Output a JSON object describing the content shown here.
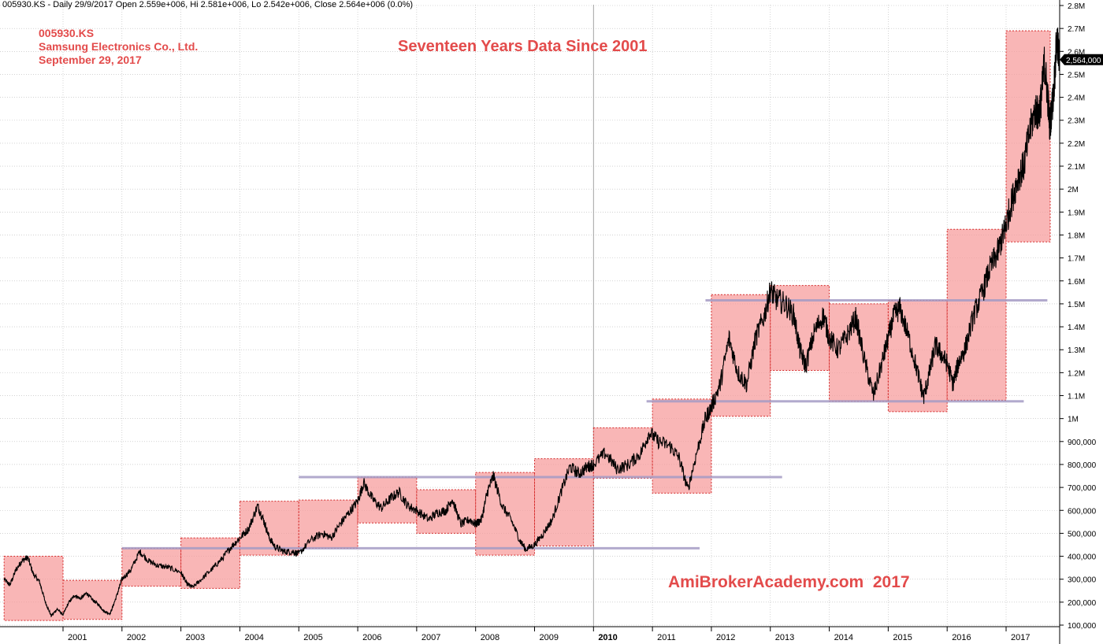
{
  "header": {
    "status_line": "005930.KS - Daily 29/9/2017 Open 2.559e+006, Hi 2.581e+006, Lo 2.542e+006, Close 2.564e+006 (0.0%)"
  },
  "info": {
    "ticker": "005930.KS",
    "company": "Samsung Electronics Co., Ltd.",
    "date": "September 29, 2017"
  },
  "chart_data": {
    "type": "line",
    "title": "Seventeen Years Data Since 2001",
    "watermark": "AmiBrokerAcademy.com  2017",
    "xlabel": "",
    "ylabel": "",
    "grid": true,
    "axis_position": "right",
    "last_value_label": "2,564,000",
    "ylim": [
      80000,
      2800000
    ],
    "y_ticks": [
      {
        "value": 100000,
        "label": "100,000"
      },
      {
        "value": 200000,
        "label": "200,000"
      },
      {
        "value": 300000,
        "label": "300,000"
      },
      {
        "value": 400000,
        "label": "400,000"
      },
      {
        "value": 500000,
        "label": "500,000"
      },
      {
        "value": 600000,
        "label": "600,000"
      },
      {
        "value": 700000,
        "label": "700,000"
      },
      {
        "value": 800000,
        "label": "800,000"
      },
      {
        "value": 900000,
        "label": "900,000"
      },
      {
        "value": 1000000,
        "label": "1M"
      },
      {
        "value": 1100000,
        "label": "1.1M"
      },
      {
        "value": 1200000,
        "label": "1.2M"
      },
      {
        "value": 1300000,
        "label": "1.3M"
      },
      {
        "value": 1400000,
        "label": "1.4M"
      },
      {
        "value": 1500000,
        "label": "1.5M"
      },
      {
        "value": 1600000,
        "label": "1.6M"
      },
      {
        "value": 1700000,
        "label": "1.7M"
      },
      {
        "value": 1800000,
        "label": "1.8M"
      },
      {
        "value": 1900000,
        "label": "1.9M"
      },
      {
        "value": 2000000,
        "label": "2M"
      },
      {
        "value": 2100000,
        "label": "2.1M"
      },
      {
        "value": 2200000,
        "label": "2.2M"
      },
      {
        "value": 2300000,
        "label": "2.3M"
      },
      {
        "value": 2400000,
        "label": "2.4M"
      },
      {
        "value": 2500000,
        "label": "2.5M"
      },
      {
        "value": 2600000,
        "label": "2.6M"
      },
      {
        "value": 2700000,
        "label": "2.7M"
      },
      {
        "value": 2800000,
        "label": "2.8M"
      }
    ],
    "x_ticks": [
      "2001",
      "2002",
      "2003",
      "2004",
      "2005",
      "2006",
      "2007",
      "2008",
      "2009",
      "2010",
      "2011",
      "2012",
      "2013",
      "2014",
      "2015",
      "2016",
      "2017"
    ],
    "yearly_ranges": [
      {
        "year": 2000,
        "low": 120000,
        "high": 400000
      },
      {
        "year": 2001,
        "low": 125000,
        "high": 295000
      },
      {
        "year": 2002,
        "low": 270000,
        "high": 435000
      },
      {
        "year": 2003,
        "low": 260000,
        "high": 480000
      },
      {
        "year": 2004,
        "low": 405000,
        "high": 640000
      },
      {
        "year": 2005,
        "low": 435000,
        "high": 645000
      },
      {
        "year": 2006,
        "low": 545000,
        "high": 745000
      },
      {
        "year": 2007,
        "low": 500000,
        "high": 690000
      },
      {
        "year": 2008,
        "low": 405000,
        "high": 765000
      },
      {
        "year": 2009,
        "low": 445000,
        "high": 825000
      },
      {
        "year": 2010,
        "low": 740000,
        "high": 960000
      },
      {
        "year": 2011,
        "low": 675000,
        "high": 1085000
      },
      {
        "year": 2012,
        "low": 1010000,
        "high": 1540000
      },
      {
        "year": 2013,
        "low": 1210000,
        "high": 1580000
      },
      {
        "year": 2014,
        "low": 1075000,
        "high": 1500000
      },
      {
        "year": 2015,
        "low": 1030000,
        "high": 1515000
      },
      {
        "year": 2016,
        "low": 1080000,
        "high": 1825000
      },
      {
        "year": 2017,
        "low": 1770000,
        "high": 2690000
      }
    ],
    "support_lines": [
      {
        "value": 435000,
        "from": 2002.0,
        "to": 2011.8
      },
      {
        "value": 745000,
        "from": 2005.0,
        "to": 2013.2
      },
      {
        "value": 1075000,
        "from": 2010.9,
        "to": 2017.3
      },
      {
        "value": 1515000,
        "from": 2011.9,
        "to": 2017.7
      }
    ],
    "series": [
      {
        "values": [
          [
            2000.0,
            300000
          ],
          [
            2000.1,
            275000
          ],
          [
            2000.2,
            340000
          ],
          [
            2000.3,
            380000
          ],
          [
            2000.4,
            395000
          ],
          [
            2000.5,
            320000
          ],
          [
            2000.6,
            290000
          ],
          [
            2000.7,
            200000
          ],
          [
            2000.8,
            140000
          ],
          [
            2000.9,
            170000
          ],
          [
            2001.0,
            145000
          ],
          [
            2001.1,
            200000
          ],
          [
            2001.2,
            230000
          ],
          [
            2001.3,
            215000
          ],
          [
            2001.4,
            240000
          ],
          [
            2001.5,
            210000
          ],
          [
            2001.6,
            190000
          ],
          [
            2001.7,
            160000
          ],
          [
            2001.8,
            150000
          ],
          [
            2001.9,
            220000
          ],
          [
            2002.0,
            300000
          ],
          [
            2002.15,
            340000
          ],
          [
            2002.3,
            420000
          ],
          [
            2002.45,
            380000
          ],
          [
            2002.6,
            360000
          ],
          [
            2002.8,
            350000
          ],
          [
            2003.0,
            330000
          ],
          [
            2003.1,
            280000
          ],
          [
            2003.2,
            265000
          ],
          [
            2003.35,
            300000
          ],
          [
            2003.55,
            350000
          ],
          [
            2003.7,
            390000
          ],
          [
            2003.85,
            440000
          ],
          [
            2004.0,
            480000
          ],
          [
            2004.15,
            520000
          ],
          [
            2004.3,
            620000
          ],
          [
            2004.4,
            560000
          ],
          [
            2004.5,
            480000
          ],
          [
            2004.6,
            440000
          ],
          [
            2004.75,
            420000
          ],
          [
            2004.9,
            420000
          ],
          [
            2005.0,
            410000
          ],
          [
            2005.2,
            470000
          ],
          [
            2005.4,
            500000
          ],
          [
            2005.55,
            480000
          ],
          [
            2005.7,
            540000
          ],
          [
            2005.85,
            590000
          ],
          [
            2006.0,
            640000
          ],
          [
            2006.1,
            720000
          ],
          [
            2006.25,
            650000
          ],
          [
            2006.4,
            610000
          ],
          [
            2006.55,
            650000
          ],
          [
            2006.7,
            680000
          ],
          [
            2006.85,
            620000
          ],
          [
            2007.0,
            600000
          ],
          [
            2007.2,
            560000
          ],
          [
            2007.35,
            590000
          ],
          [
            2007.5,
            600000
          ],
          [
            2007.6,
            650000
          ],
          [
            2007.75,
            540000
          ],
          [
            2007.9,
            560000
          ],
          [
            2008.0,
            540000
          ],
          [
            2008.1,
            560000
          ],
          [
            2008.2,
            680000
          ],
          [
            2008.3,
            750000
          ],
          [
            2008.45,
            620000
          ],
          [
            2008.6,
            560000
          ],
          [
            2008.75,
            470000
          ],
          [
            2008.85,
            430000
          ],
          [
            2009.0,
            450000
          ],
          [
            2009.15,
            500000
          ],
          [
            2009.3,
            560000
          ],
          [
            2009.45,
            680000
          ],
          [
            2009.6,
            790000
          ],
          [
            2009.75,
            760000
          ],
          [
            2009.9,
            790000
          ],
          [
            2010.0,
            800000
          ],
          [
            2010.2,
            850000
          ],
          [
            2010.4,
            780000
          ],
          [
            2010.6,
            800000
          ],
          [
            2010.8,
            850000
          ],
          [
            2010.95,
            940000
          ],
          [
            2011.1,
            900000
          ],
          [
            2011.3,
            880000
          ],
          [
            2011.45,
            830000
          ],
          [
            2011.6,
            690000
          ],
          [
            2011.75,
            850000
          ],
          [
            2011.9,
            1000000
          ],
          [
            2012.0,
            1050000
          ],
          [
            2012.15,
            1150000
          ],
          [
            2012.3,
            1350000
          ],
          [
            2012.45,
            1200000
          ],
          [
            2012.6,
            1150000
          ],
          [
            2012.75,
            1350000
          ],
          [
            2012.9,
            1450000
          ],
          [
            2013.0,
            1560000
          ],
          [
            2013.1,
            1520000
          ],
          [
            2013.25,
            1500000
          ],
          [
            2013.4,
            1450000
          ],
          [
            2013.5,
            1300000
          ],
          [
            2013.6,
            1230000
          ],
          [
            2013.75,
            1380000
          ],
          [
            2013.9,
            1450000
          ],
          [
            2014.0,
            1350000
          ],
          [
            2014.15,
            1300000
          ],
          [
            2014.3,
            1360000
          ],
          [
            2014.45,
            1440000
          ],
          [
            2014.6,
            1250000
          ],
          [
            2014.75,
            1100000
          ],
          [
            2014.9,
            1250000
          ],
          [
            2015.0,
            1350000
          ],
          [
            2015.1,
            1450000
          ],
          [
            2015.2,
            1480000
          ],
          [
            2015.35,
            1350000
          ],
          [
            2015.5,
            1200000
          ],
          [
            2015.6,
            1090000
          ],
          [
            2015.7,
            1200000
          ],
          [
            2015.8,
            1320000
          ],
          [
            2015.9,
            1280000
          ],
          [
            2016.0,
            1240000
          ],
          [
            2016.1,
            1150000
          ],
          [
            2016.2,
            1250000
          ],
          [
            2016.3,
            1300000
          ],
          [
            2016.45,
            1450000
          ],
          [
            2016.6,
            1550000
          ],
          [
            2016.72,
            1650000
          ],
          [
            2016.85,
            1720000
          ],
          [
            2016.95,
            1800000
          ],
          [
            2017.0,
            1850000
          ],
          [
            2017.1,
            1950000
          ],
          [
            2017.2,
            2050000
          ],
          [
            2017.3,
            2100000
          ],
          [
            2017.4,
            2250000
          ],
          [
            2017.5,
            2350000
          ],
          [
            2017.55,
            2320000
          ],
          [
            2017.6,
            2400000
          ],
          [
            2017.65,
            2550000
          ],
          [
            2017.7,
            2420000
          ],
          [
            2017.74,
            2280000
          ],
          [
            2017.8,
            2400000
          ],
          [
            2017.86,
            2650000
          ],
          [
            2017.9,
            2564000
          ]
        ]
      }
    ]
  }
}
